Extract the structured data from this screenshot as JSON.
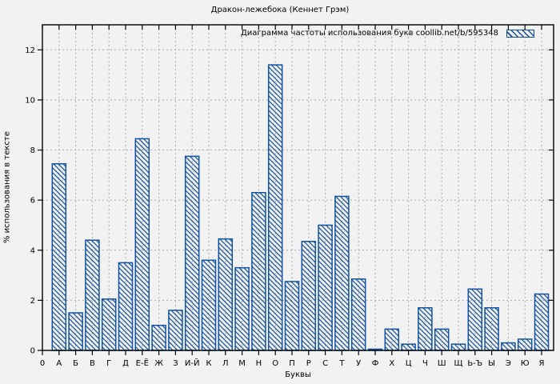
{
  "chart_data": {
    "type": "bar",
    "title": "Дракон-лежебока (Кеннет Грэм)",
    "legend": "Диаграмма частоты использования букв coollib.net/b/595348",
    "legend_position": "top-right",
    "xlabel": "Буквы",
    "ylabel": "% использования в тексте",
    "origin_tick": "0",
    "categories": [
      "А",
      "Б",
      "В",
      "Г",
      "Д",
      "Е-Ё",
      "Ж",
      "З",
      "И-Й",
      "К",
      "Л",
      "М",
      "Н",
      "О",
      "П",
      "Р",
      "С",
      "Т",
      "У",
      "Ф",
      "Х",
      "Ц",
      "Ч",
      "Ш",
      "Щ",
      "Ь-Ъ",
      "Ы",
      "Э",
      "Ю",
      "Я"
    ],
    "values": [
      7.45,
      1.5,
      4.4,
      2.05,
      3.5,
      8.45,
      1.0,
      1.6,
      7.75,
      3.6,
      4.45,
      3.3,
      6.3,
      11.4,
      2.75,
      4.35,
      5.0,
      6.15,
      2.85,
      0.05,
      0.85,
      0.25,
      1.7,
      0.85,
      0.25,
      2.45,
      1.7,
      0.3,
      0.45,
      2.25
    ],
    "y_ticks": [
      0,
      2,
      4,
      6,
      8,
      10,
      12
    ],
    "ylim": [
      0,
      13
    ],
    "grid": true,
    "bar_color": "#11519f",
    "background": "#f2f2f2",
    "grid_color": "#aaaaaa",
    "border_color": "#000000"
  }
}
